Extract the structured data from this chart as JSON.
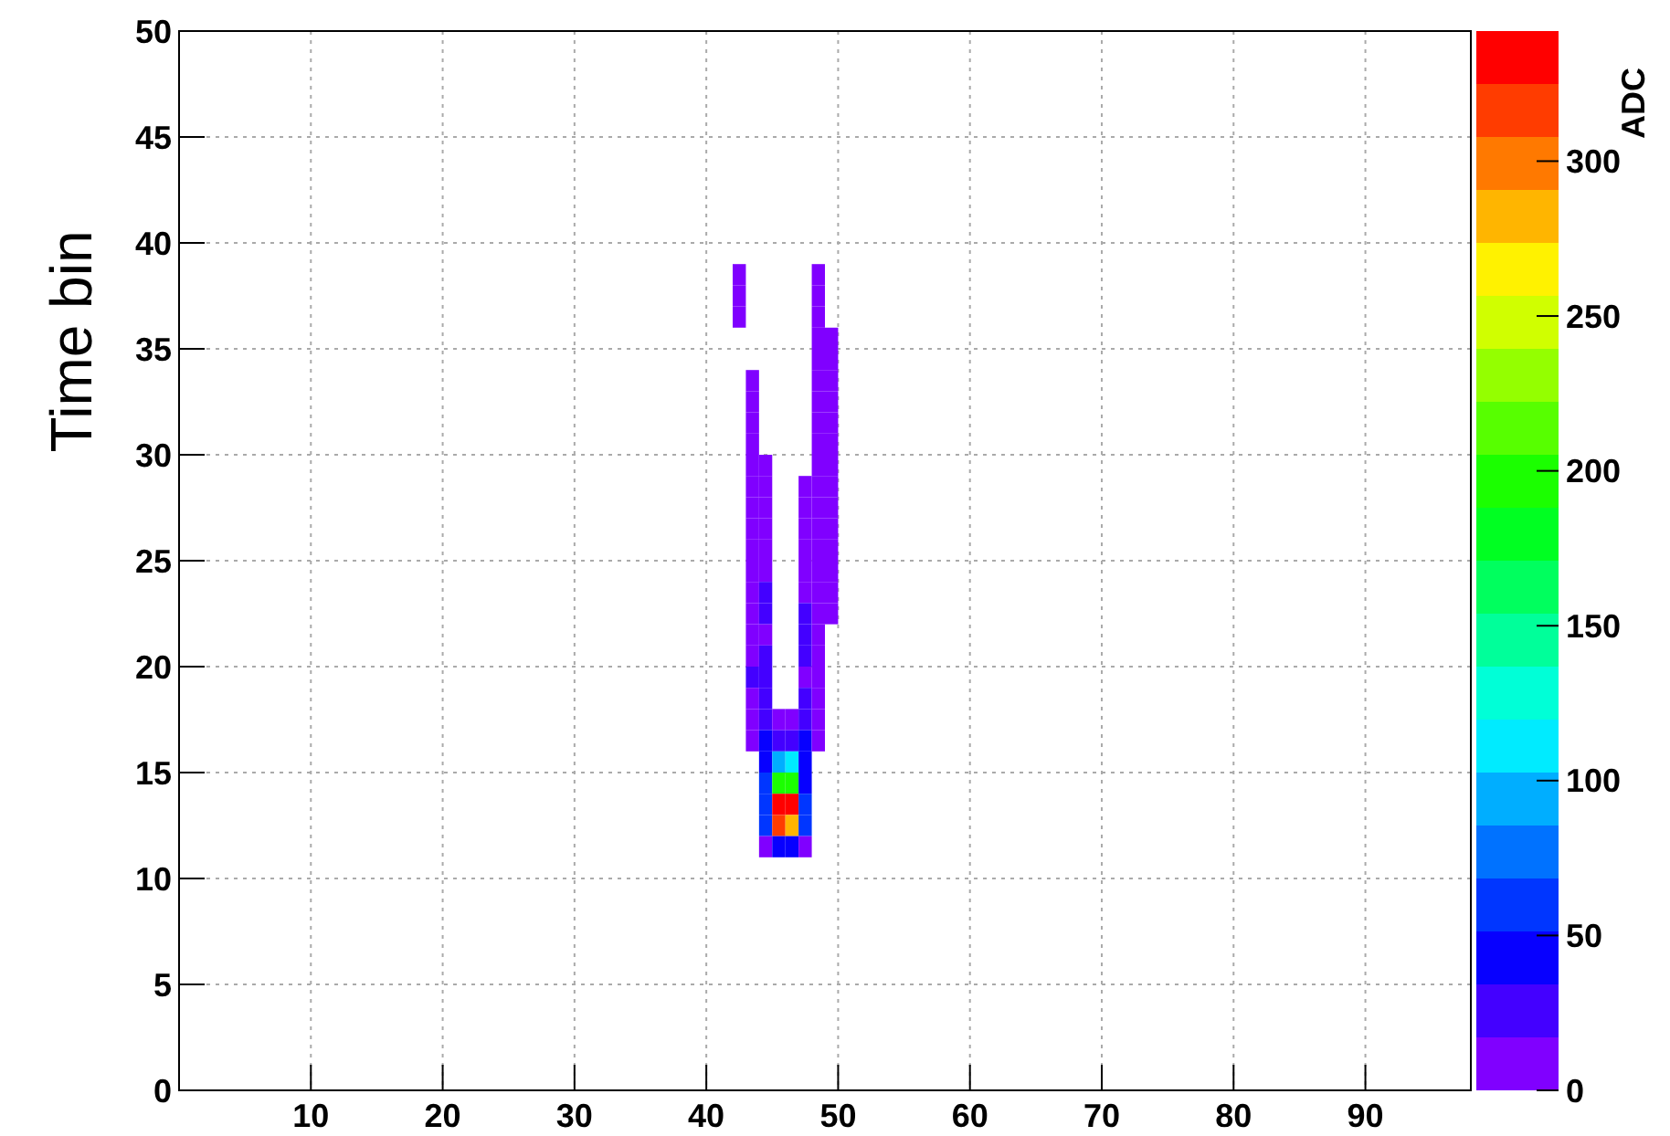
{
  "chart_data": {
    "type": "heatmap",
    "ylabel": "Time bin",
    "clabel": "ADC",
    "x": [
      42.5,
      43.5,
      44.5,
      45.5,
      46.5,
      47.5,
      48.5,
      49.5
    ],
    "y": [
      38.5,
      37.5,
      36.5,
      35.5,
      34.5,
      33.5,
      32.5,
      31.5,
      30.5,
      29.5,
      28.5,
      27.5,
      26.5,
      25.5,
      24.5,
      23.5,
      22.5,
      21.5,
      20.5,
      19.5,
      18.5,
      17.5,
      16.5,
      15.5,
      14.5,
      13.5,
      12.5,
      11.5
    ],
    "cells": [
      [
        8,
        null,
        null,
        null,
        null,
        null,
        8,
        null
      ],
      [
        8,
        null,
        null,
        null,
        null,
        null,
        8,
        null
      ],
      [
        8,
        null,
        null,
        null,
        null,
        null,
        8,
        null
      ],
      [
        null,
        null,
        null,
        null,
        null,
        null,
        8,
        8
      ],
      [
        null,
        null,
        null,
        null,
        null,
        null,
        8,
        8
      ],
      [
        null,
        8,
        null,
        null,
        null,
        null,
        8,
        8
      ],
      [
        null,
        8,
        null,
        null,
        null,
        null,
        8,
        8
      ],
      [
        null,
        8,
        null,
        null,
        null,
        null,
        8,
        8
      ],
      [
        null,
        8,
        null,
        null,
        null,
        null,
        8,
        8
      ],
      [
        null,
        8,
        8,
        null,
        null,
        null,
        8,
        8
      ],
      [
        null,
        8,
        8,
        null,
        null,
        8,
        8,
        8
      ],
      [
        null,
        8,
        8,
        null,
        null,
        8,
        8,
        8
      ],
      [
        null,
        8,
        8,
        null,
        null,
        8,
        8,
        8
      ],
      [
        null,
        8,
        8,
        null,
        null,
        8,
        8,
        8
      ],
      [
        null,
        8,
        8,
        null,
        null,
        8,
        8,
        8
      ],
      [
        null,
        8,
        20,
        null,
        null,
        8,
        8,
        8
      ],
      [
        null,
        8,
        20,
        null,
        null,
        20,
        8,
        8
      ],
      [
        null,
        8,
        8,
        null,
        null,
        20,
        8,
        null
      ],
      [
        null,
        12,
        20,
        null,
        null,
        20,
        8,
        null
      ],
      [
        null,
        25,
        30,
        null,
        null,
        15,
        8,
        null
      ],
      [
        null,
        12,
        22,
        null,
        null,
        22,
        8,
        null
      ],
      [
        null,
        8,
        25,
        15,
        15,
        25,
        8,
        null
      ],
      [
        null,
        10,
        35,
        25,
        30,
        35,
        8,
        null
      ],
      [
        null,
        null,
        45,
        90,
        105,
        45,
        null,
        null
      ],
      [
        null,
        null,
        55,
        195,
        195,
        50,
        null,
        null
      ],
      [
        null,
        null,
        60,
        335,
        330,
        55,
        null,
        null
      ],
      [
        null,
        null,
        60,
        320,
        290,
        55,
        null,
        null
      ],
      [
        null,
        null,
        10,
        40,
        40,
        12,
        null,
        null
      ]
    ],
    "xlim": [
      0,
      98
    ],
    "xticks": [
      10,
      20,
      30,
      40,
      50,
      60,
      70,
      80,
      90
    ],
    "ylim": [
      0,
      50
    ],
    "yticks": [
      0,
      5,
      10,
      15,
      20,
      25,
      30,
      35,
      40,
      45,
      50
    ],
    "clim": [
      0,
      342
    ],
    "cticks": [
      0,
      50,
      100,
      150,
      200,
      250,
      300
    ],
    "grid": true
  }
}
